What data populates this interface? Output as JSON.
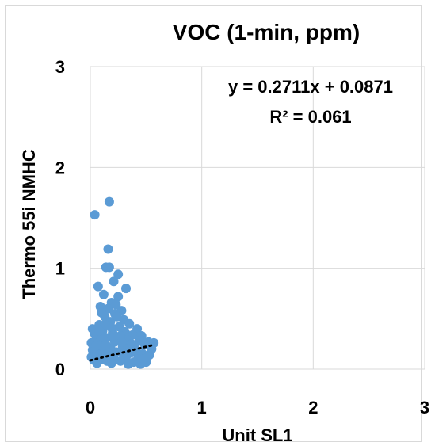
{
  "chart_data": {
    "type": "scatter",
    "title": "VOC (1-min, ppm)",
    "xlabel": "Unit SL1",
    "ylabel": "Thermo 55i NMHC",
    "xlim": [
      0,
      3
    ],
    "ylim": [
      0,
      3
    ],
    "x_ticks": [
      "0",
      "1",
      "2",
      "3"
    ],
    "y_ticks": [
      "0",
      "1",
      "2",
      "3"
    ],
    "grid": true,
    "legend": "none",
    "marker_color": "#5b9bd5",
    "trendline": {
      "type": "linear",
      "style": "dotted",
      "color": "#000000",
      "slope": 0.2711,
      "intercept": 0.0871,
      "x_range": [
        0,
        0.57
      ],
      "equation": "y = 0.2711x + 0.0871",
      "r2_label": "R² = 0.061"
    },
    "series": [
      {
        "points": [
          [
            0.04,
            1.53
          ],
          [
            0.17,
            1.66
          ],
          [
            0.16,
            1.19
          ],
          [
            0.14,
            1.01
          ],
          [
            0.17,
            1.01
          ],
          [
            0.25,
            0.94
          ],
          [
            0.07,
            0.82
          ],
          [
            0.21,
            0.87
          ],
          [
            0.32,
            0.8
          ],
          [
            0.12,
            0.74
          ],
          [
            0.25,
            0.72
          ],
          [
            0.19,
            0.66
          ],
          [
            0.09,
            0.62
          ],
          [
            0.28,
            0.58
          ],
          [
            0.22,
            0.55
          ],
          [
            0.13,
            0.52
          ],
          [
            0.3,
            0.49
          ],
          [
            0.18,
            0.47
          ],
          [
            0.35,
            0.45
          ],
          [
            0.08,
            0.44
          ],
          [
            0.26,
            0.42
          ],
          [
            0.42,
            0.4
          ],
          [
            0.02,
            0.4
          ],
          [
            0.11,
            0.38
          ],
          [
            0.2,
            0.36
          ],
          [
            0.31,
            0.37
          ],
          [
            0.38,
            0.34
          ],
          [
            0.46,
            0.33
          ],
          [
            0.05,
            0.33
          ],
          [
            0.15,
            0.31
          ],
          [
            0.24,
            0.3
          ],
          [
            0.33,
            0.29
          ],
          [
            0.44,
            0.28
          ],
          [
            0.52,
            0.27
          ],
          [
            0.57,
            0.26
          ],
          [
            0.49,
            0.24
          ],
          [
            0.4,
            0.23
          ],
          [
            0.29,
            0.22
          ],
          [
            0.18,
            0.21
          ],
          [
            0.08,
            0.2
          ],
          [
            0.02,
            0.19
          ],
          [
            0.12,
            0.18
          ],
          [
            0.23,
            0.17
          ],
          [
            0.36,
            0.16
          ],
          [
            0.47,
            0.15
          ],
          [
            0.53,
            0.14
          ],
          [
            0.43,
            0.12
          ],
          [
            0.32,
            0.12
          ],
          [
            0.21,
            0.11
          ],
          [
            0.1,
            0.1
          ],
          [
            0.03,
            0.09
          ],
          [
            0.15,
            0.08
          ],
          [
            0.27,
            0.08
          ],
          [
            0.39,
            0.07
          ],
          [
            0.5,
            0.07
          ],
          [
            0.06,
            0.06
          ],
          [
            0.19,
            0.06
          ],
          [
            0.34,
            0.05
          ],
          [
            0.45,
            0.05
          ],
          [
            0.01,
            0.12
          ],
          [
            0.01,
            0.26
          ],
          [
            0.04,
            0.35
          ],
          [
            0.09,
            0.28
          ],
          [
            0.14,
            0.24
          ],
          [
            0.22,
            0.27
          ],
          [
            0.27,
            0.33
          ],
          [
            0.37,
            0.25
          ],
          [
            0.41,
            0.19
          ],
          [
            0.3,
            0.15
          ],
          [
            0.16,
            0.14
          ],
          [
            0.06,
            0.15
          ],
          [
            0.11,
            0.32
          ],
          [
            0.19,
            0.41
          ],
          [
            0.24,
            0.52
          ],
          [
            0.16,
            0.6
          ],
          [
            0.23,
            0.64
          ],
          [
            0.1,
            0.56
          ],
          [
            0.05,
            0.23
          ],
          [
            0.55,
            0.2
          ],
          [
            0.48,
            0.1
          ],
          [
            0.34,
            0.2
          ],
          [
            0.28,
            0.27
          ],
          [
            0.13,
            0.44
          ],
          [
            0.2,
            0.33
          ],
          [
            0.08,
            0.38
          ]
        ]
      }
    ]
  }
}
